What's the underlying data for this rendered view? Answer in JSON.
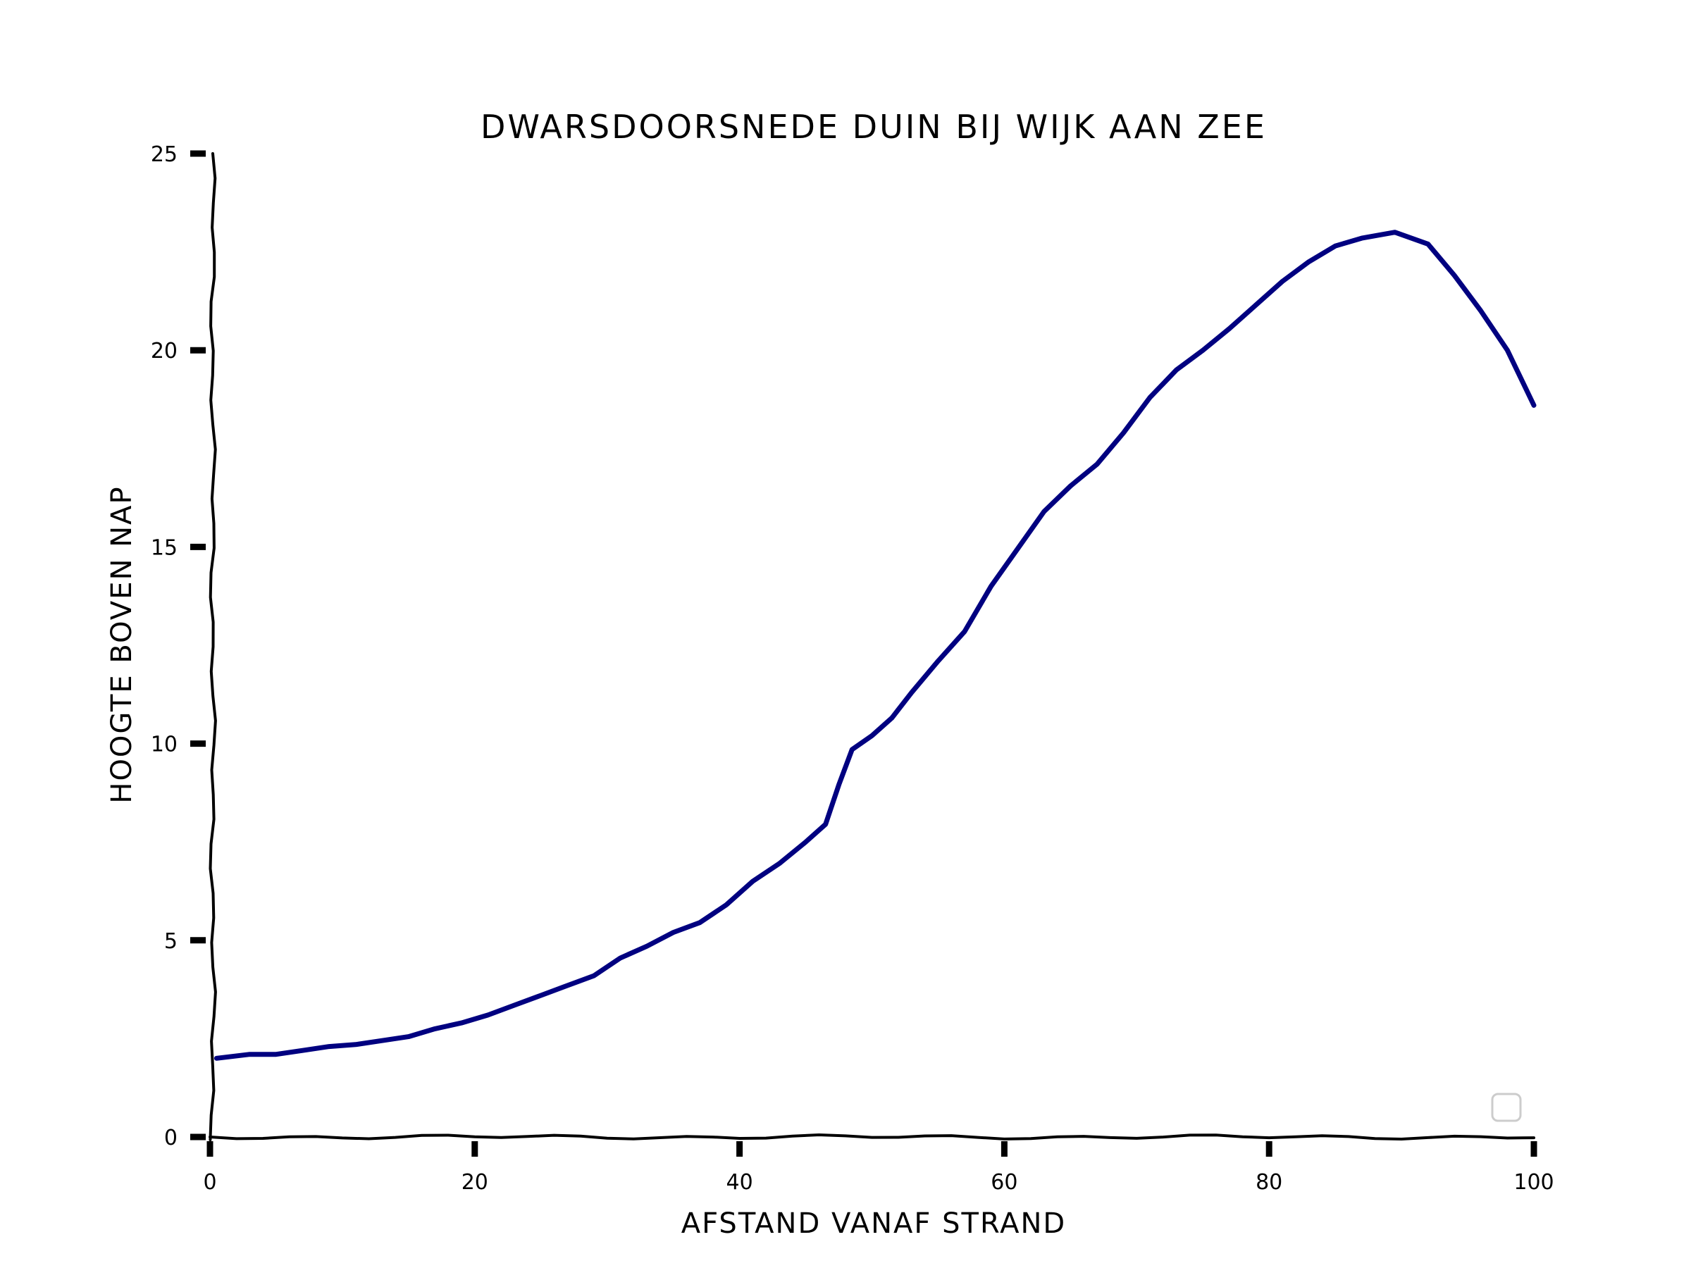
{
  "chart_data": {
    "type": "line",
    "title": "DWARSDOORSNEDE DUIN BIJ WIJK AAN ZEE",
    "xlabel": "AFSTAND VANAF STRAND",
    "ylabel": "HOOGTE BOVEN NAP",
    "xlim": [
      0,
      100
    ],
    "ylim": [
      0,
      25
    ],
    "xticks": [
      0,
      20,
      40,
      60,
      80,
      100
    ],
    "yticks": [
      0,
      5,
      10,
      15,
      20,
      25
    ],
    "xtick_labels": [
      "0",
      "20",
      "40",
      "60",
      "80",
      "100"
    ],
    "ytick_labels": [
      "0",
      "5",
      "10",
      "15",
      "20",
      "25"
    ],
    "grid": false,
    "legend": "bottom-right (empty box)",
    "series": [
      {
        "color": "#000080",
        "x": [
          0.5,
          3,
          5,
          7,
          9,
          11,
          13,
          15,
          17,
          19,
          21,
          23,
          25,
          27,
          29,
          31,
          33,
          35,
          37,
          39,
          41,
          43,
          45,
          46.5,
          47.5,
          48.5,
          50,
          51.5,
          53,
          55,
          57,
          59,
          61,
          63,
          65,
          67,
          69,
          71,
          73,
          75,
          77,
          79,
          81,
          83,
          85,
          87,
          89.5,
          92,
          94,
          96,
          98,
          100
        ],
        "y": [
          2.0,
          2.1,
          2.1,
          2.2,
          2.3,
          2.35,
          2.45,
          2.55,
          2.75,
          2.9,
          3.1,
          3.35,
          3.6,
          3.85,
          4.1,
          4.55,
          4.85,
          5.2,
          5.45,
          5.9,
          6.5,
          6.95,
          7.5,
          7.95,
          8.95,
          9.85,
          10.2,
          10.65,
          11.3,
          12.1,
          12.85,
          14.0,
          14.95,
          15.9,
          16.55,
          17.1,
          17.9,
          18.8,
          19.5,
          20.0,
          20.55,
          21.15,
          21.75,
          22.25,
          22.65,
          22.85,
          23.0,
          22.7,
          21.9,
          21.0,
          20.0,
          18.6
        ]
      }
    ]
  }
}
